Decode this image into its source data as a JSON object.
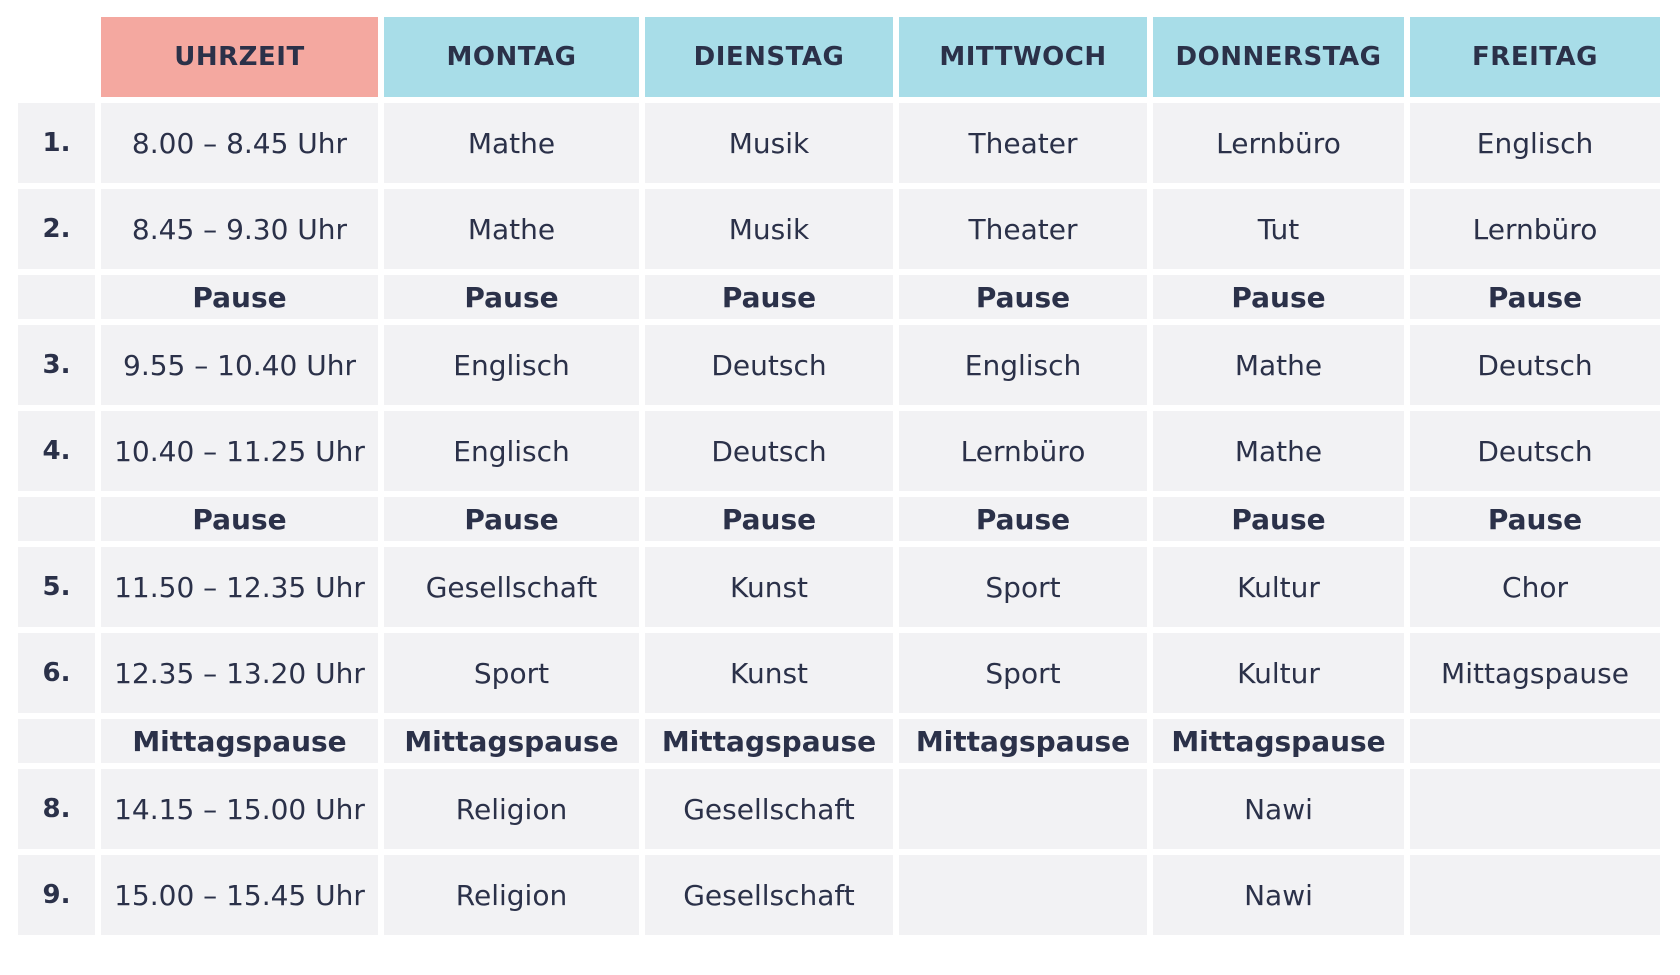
{
  "header": {
    "time": "UHRZEIT",
    "days": [
      "MONTAG",
      "DIENSTAG",
      "MITTWOCH",
      "DONNERSTAG",
      "FREITAG"
    ]
  },
  "rows": [
    {
      "num": "1.",
      "time": "8.00 – 8.45 Uhr",
      "cells": [
        "Mathe",
        "Musik",
        "Theater",
        "Lernbüro",
        "Englisch"
      ]
    },
    {
      "num": "2.",
      "time": "8.45 – 9.30 Uhr",
      "cells": [
        "Mathe",
        "Musik",
        "Theater",
        "Tut",
        "Lernbüro"
      ]
    },
    {
      "num": "",
      "time": "Pause",
      "cells": [
        "Pause",
        "Pause",
        "Pause",
        "Pause",
        "Pause"
      ]
    },
    {
      "num": "3.",
      "time": "9.55 – 10.40 Uhr",
      "cells": [
        "Englisch",
        "Deutsch",
        "Englisch",
        "Mathe",
        "Deutsch"
      ]
    },
    {
      "num": "4.",
      "time": "10.40 – 11.25 Uhr",
      "cells": [
        "Englisch",
        "Deutsch",
        "Lernbüro",
        "Mathe",
        "Deutsch"
      ]
    },
    {
      "num": "",
      "time": "Pause",
      "cells": [
        "Pause",
        "Pause",
        "Pause",
        "Pause",
        "Pause"
      ]
    },
    {
      "num": "5.",
      "time": "11.50 – 12.35 Uhr",
      "cells": [
        "Gesellschaft",
        "Kunst",
        "Sport",
        "Kultur",
        "Chor"
      ]
    },
    {
      "num": "6.",
      "time": "12.35 – 13.20 Uhr",
      "cells": [
        "Sport",
        "Kunst",
        "Sport",
        "Kultur",
        "Mittagspause"
      ]
    },
    {
      "num": "",
      "time": "Mittagspause",
      "cells": [
        "Mittagspause",
        "Mittagspause",
        "Mittagspause",
        "Mittagspause",
        ""
      ]
    },
    {
      "num": "8.",
      "time": "14.15 – 15.00 Uhr",
      "cells": [
        "Religion",
        "Gesellschaft",
        "",
        "Nawi",
        ""
      ]
    },
    {
      "num": "9.",
      "time": "15.00 – 15.45 Uhr",
      "cells": [
        "Religion",
        "Gesellschaft",
        "",
        "Nawi",
        ""
      ]
    }
  ],
  "colors": {
    "time_header": "#f4a8a0",
    "day_header": "#a8dde8",
    "cell_bg": "#f2f2f4",
    "text": "#2b3149"
  }
}
